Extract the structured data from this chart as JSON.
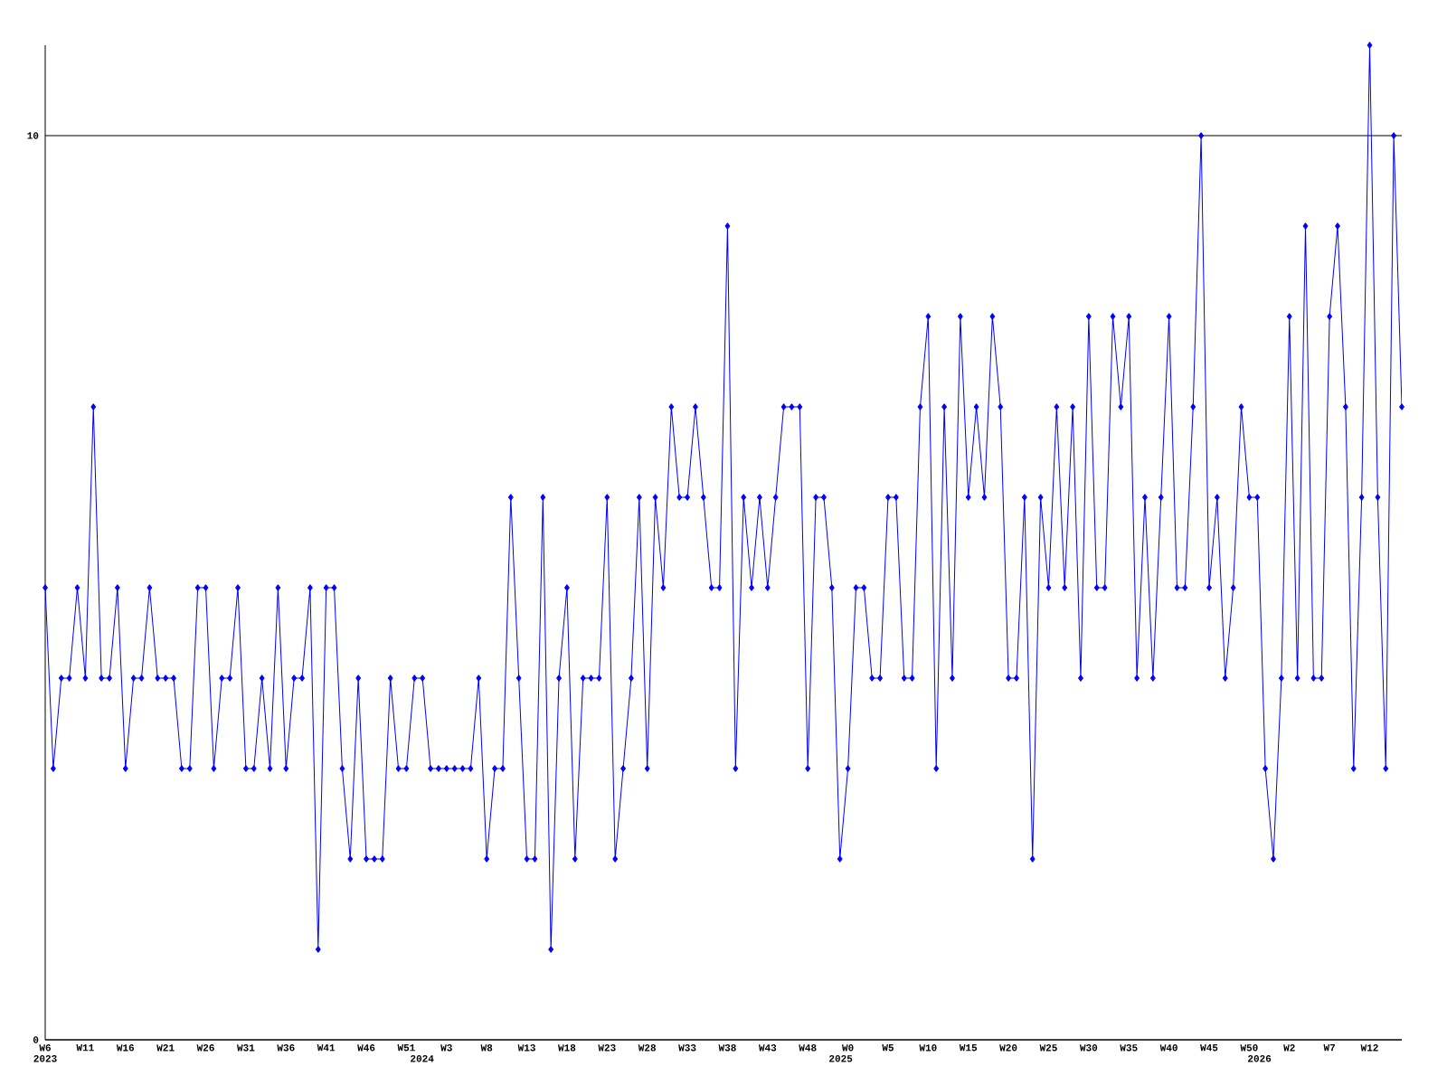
{
  "chart_data": {
    "type": "line",
    "categories": [
      "W6",
      null,
      null,
      null,
      null,
      "W11",
      null,
      null,
      null,
      null,
      "W16",
      null,
      null,
      null,
      null,
      "W21",
      null,
      null,
      null,
      null,
      "W26",
      null,
      null,
      null,
      null,
      "W31",
      null,
      null,
      null,
      null,
      "W36",
      null,
      null,
      null,
      null,
      "W41",
      null,
      null,
      null,
      null,
      "W46",
      null,
      null,
      null,
      null,
      "W51",
      null,
      null,
      null,
      null,
      "W3",
      null,
      null,
      null,
      null,
      "W8",
      null,
      null,
      null,
      null,
      "W13",
      null,
      null,
      null,
      null,
      "W18",
      null,
      null,
      null,
      null,
      "W23",
      null,
      null,
      null,
      null,
      "W28",
      null,
      null,
      null,
      null,
      "W33",
      null,
      null,
      null,
      null,
      "W38",
      null,
      null,
      null,
      null,
      "W43",
      null,
      null,
      null,
      null,
      "W48",
      null,
      null,
      null,
      null,
      "W0",
      null,
      null,
      null,
      null,
      "W5",
      null,
      null,
      null,
      null,
      "W10",
      null,
      null,
      null,
      null,
      "W15",
      null,
      null,
      null,
      null,
      "W20",
      null,
      null,
      null,
      null,
      "W25",
      null,
      null,
      null,
      null,
      "W30",
      null,
      null,
      null,
      null,
      "W35",
      null,
      null,
      null,
      null,
      "W40",
      null,
      null,
      null,
      null,
      "W45",
      null,
      null,
      null,
      null,
      "W50",
      null,
      null,
      null,
      null,
      "W2",
      null,
      null,
      null,
      null,
      "W7",
      null,
      null,
      null,
      null,
      "W12",
      null,
      null,
      null,
      null
    ],
    "series": [
      {
        "color": "#0000ff",
        "values": [
          5,
          3,
          4,
          4,
          5,
          4,
          7,
          4,
          4,
          5,
          3,
          4,
          4,
          5,
          4,
          4,
          4,
          3,
          3,
          5,
          5,
          3,
          4,
          4,
          5,
          3,
          3,
          4,
          3,
          5,
          3,
          4,
          4,
          5,
          1,
          5,
          5,
          3,
          2,
          4,
          2,
          2,
          2,
          4,
          3,
          3,
          4,
          4,
          3,
          3,
          3,
          3,
          3,
          3,
          4,
          2,
          3,
          3,
          6,
          4,
          2,
          2,
          6,
          1,
          4,
          5,
          2,
          4,
          4,
          4,
          6,
          2,
          3,
          4,
          6,
          3,
          6,
          5,
          7,
          6,
          6,
          7,
          6,
          5,
          5,
          9,
          3,
          6,
          5,
          6,
          5,
          6,
          7,
          7,
          7,
          3,
          6,
          6,
          5,
          2,
          3,
          5,
          5,
          4,
          4,
          6,
          6,
          4,
          4,
          7,
          8,
          3,
          7,
          4,
          8,
          6,
          7,
          6,
          8,
          7,
          4,
          4,
          6,
          2,
          6,
          5,
          7,
          5,
          7,
          4,
          8,
          5,
          5,
          8,
          7,
          8,
          4,
          6,
          4,
          6,
          8,
          5,
          5,
          7,
          10,
          5,
          6,
          4,
          5,
          7,
          6,
          6,
          3,
          2,
          4,
          8,
          4,
          9,
          4,
          4,
          8,
          9,
          7,
          3,
          6,
          11,
          6,
          3,
          10,
          7
        ]
      }
    ],
    "ylim": [
      0,
      11
    ],
    "yticks": [
      0,
      10
    ],
    "grid": "y",
    "marker": "diamond",
    "x2lim": [
      2023.1,
      2026.34
    ],
    "x2ticks": [
      {
        "value": 2023.1,
        "label": "2023"
      },
      2024,
      2025,
      2026
    ]
  }
}
